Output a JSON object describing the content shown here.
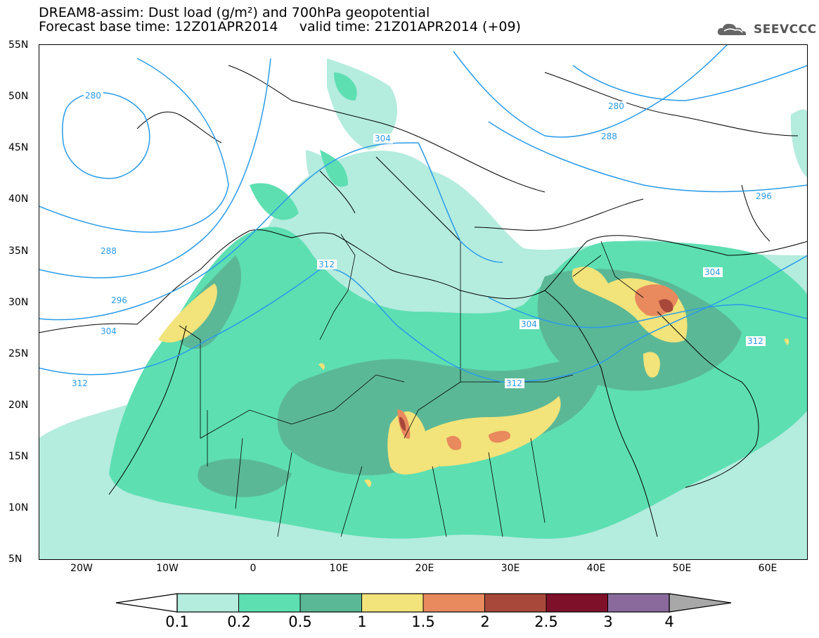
{
  "header": {
    "title_line1": "DREAM8-assim: Dust load (g/m²) and 700hPa geopotential",
    "title_line2": "Forecast base time: 12Z01APR2014     valid time: 21Z01APR2014 (+09)",
    "logo_text": "SEEVCCC"
  },
  "axes": {
    "lat_labels": [
      "55N",
      "50N",
      "45N",
      "40N",
      "35N",
      "30N",
      "25N",
      "20N",
      "15N",
      "10N",
      "5N"
    ],
    "lon_labels": [
      "20W",
      "10W",
      "0",
      "10E",
      "20E",
      "30E",
      "40E",
      "50E",
      "60E"
    ]
  },
  "contours": {
    "geopotential_labels": [
      "280",
      "280",
      "288",
      "304",
      "288",
      "296",
      "296",
      "304",
      "312",
      "304",
      "312",
      "304",
      "312",
      "312"
    ]
  },
  "colorbar": {
    "labels": [
      "0.1",
      "0.2",
      "0.5",
      "1",
      "1.5",
      "2",
      "2.5",
      "3",
      "4"
    ],
    "colors": [
      "#ffffff",
      "#b4ecde",
      "#5ddfb2",
      "#5bb896",
      "#f2e37a",
      "#e8895e",
      "#a8483a",
      "#7e1029",
      "#8a6a9c",
      "#a8a8a8"
    ]
  }
}
